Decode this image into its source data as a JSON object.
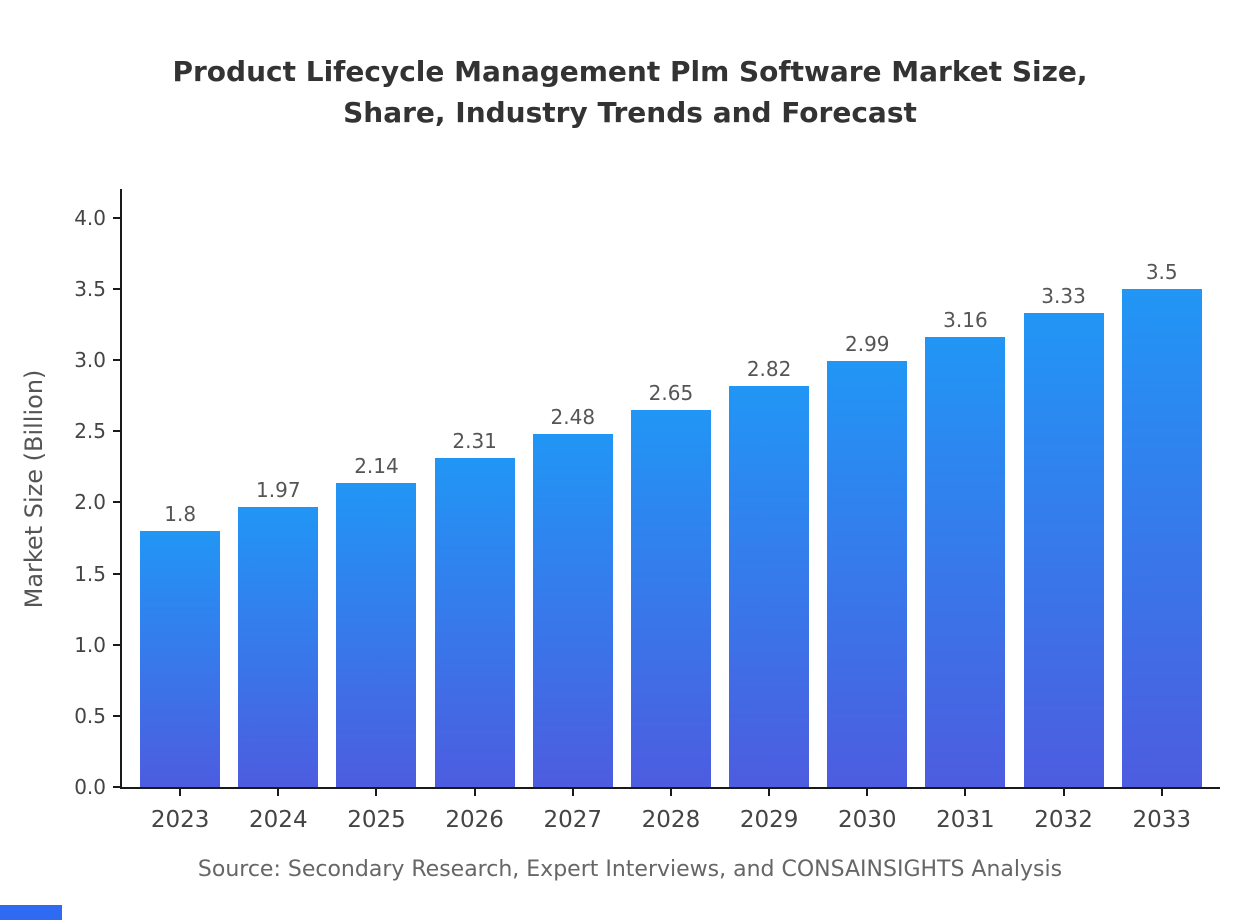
{
  "chart_data": {
    "type": "bar",
    "title": "Product Lifecycle Management Plm Software Market Size, Share, Industry Trends and Forecast",
    "categories": [
      "2023",
      "2024",
      "2025",
      "2026",
      "2027",
      "2028",
      "2029",
      "2030",
      "2031",
      "2032",
      "2033"
    ],
    "values": [
      1.8,
      1.97,
      2.14,
      2.31,
      2.48,
      2.65,
      2.82,
      2.99,
      3.16,
      3.33,
      3.5
    ],
    "xlabel": "",
    "ylabel": "Market Size (Billion)",
    "ylim": [
      0,
      4.2
    ],
    "ytick_labels": [
      "0.0",
      "0.5",
      "1.0",
      "1.5",
      "2.0",
      "2.5",
      "3.0",
      "3.5",
      "4.0"
    ],
    "grid": false,
    "legend": "none",
    "colors": {
      "bar_top": "#2196f5",
      "bar_bottom": "#4d5ce0",
      "axis": "#1a1a1a",
      "watermark": "#2f6bf2"
    }
  },
  "source": "Source: Secondary Research, Expert Interviews, and CONSAINSIGHTS Analysis"
}
